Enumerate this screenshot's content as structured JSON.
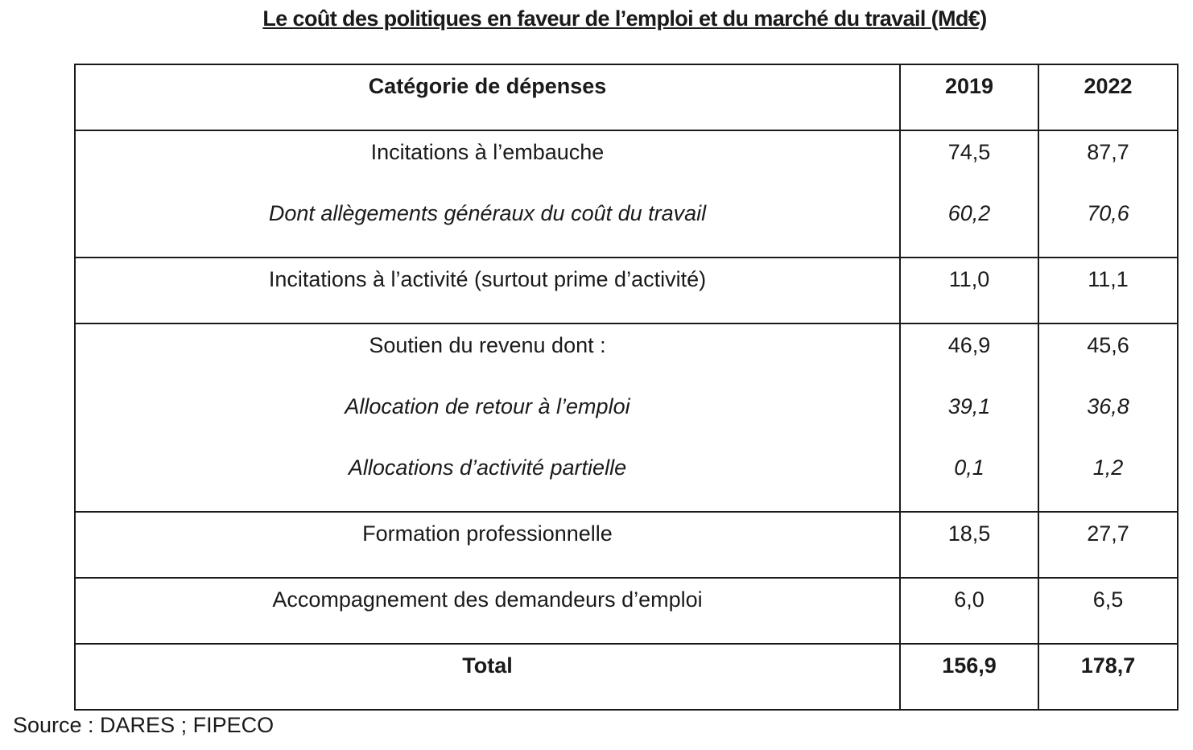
{
  "title": "Le coût des politiques en faveur de l’emploi et du marché du travail (Md€)",
  "table": {
    "headers": [
      "Catégorie de dépenses",
      "2019",
      "2022"
    ],
    "groups": [
      {
        "rows": [
          {
            "label": "Incitations à l’embauche",
            "v2019": "74,5",
            "v2022": "87,7",
            "italic": false
          },
          {
            "label": "Dont allègements généraux du coût du travail",
            "v2019": "60,2",
            "v2022": "70,6",
            "italic": true
          }
        ]
      },
      {
        "rows": [
          {
            "label": "Incitations à l’activité (surtout prime d’activité)",
            "v2019": "11,0",
            "v2022": "11,1",
            "italic": false
          }
        ]
      },
      {
        "rows": [
          {
            "label": "Soutien du revenu dont :",
            "v2019": "46,9",
            "v2022": "45,6",
            "italic": false
          },
          {
            "label": "Allocation de retour à l’emploi",
            "v2019": "39,1",
            "v2022": "36,8",
            "italic": true
          },
          {
            "label": "Allocations d’activité partielle",
            "v2019": "0,1",
            "v2022": "1,2",
            "italic": true
          }
        ]
      },
      {
        "rows": [
          {
            "label": "Formation professionnelle",
            "v2019": "18,5",
            "v2022": "27,7",
            "italic": false
          }
        ]
      },
      {
        "rows": [
          {
            "label": "Accompagnement des demandeurs d’emploi",
            "v2019": "6,0",
            "v2022": "6,5",
            "italic": false
          }
        ]
      }
    ],
    "total": {
      "label": "Total",
      "v2019": "156,9",
      "v2022": "178,7"
    }
  },
  "source": "Source : DARES ; FIPECO"
}
